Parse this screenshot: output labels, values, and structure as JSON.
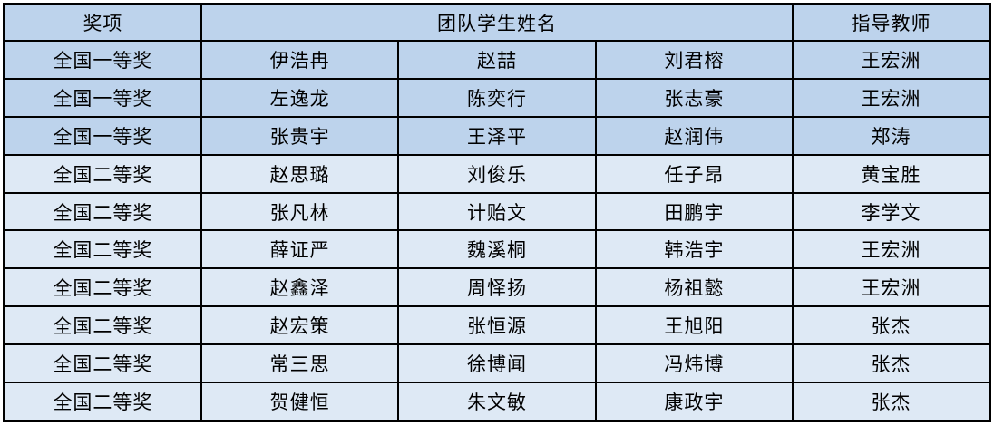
{
  "table": {
    "headers": {
      "award": "奖项",
      "team": "团队学生姓名",
      "advisor": "指导教师"
    },
    "rows": [
      {
        "award": "全国一等奖",
        "students": [
          "伊浩冉",
          "赵喆",
          "刘君榕"
        ],
        "advisor": "王宏洲",
        "shade": "dark"
      },
      {
        "award": "全国一等奖",
        "students": [
          "左逸龙",
          "陈奕行",
          "张志豪"
        ],
        "advisor": "王宏洲",
        "shade": "dark"
      },
      {
        "award": "全国一等奖",
        "students": [
          "张贵宇",
          "王泽平",
          "赵润伟"
        ],
        "advisor": "郑涛",
        "shade": "dark"
      },
      {
        "award": "全国二等奖",
        "students": [
          "赵思璐",
          "刘俊乐",
          "任子昂"
        ],
        "advisor": "黄宝胜",
        "shade": "light"
      },
      {
        "award": "全国二等奖",
        "students": [
          "张凡林",
          "计贻文",
          "田鹏宇"
        ],
        "advisor": "李学文",
        "shade": "light"
      },
      {
        "award": "全国二等奖",
        "students": [
          "薛证严",
          "魏溪桐",
          "韩浩宇"
        ],
        "advisor": "王宏洲",
        "shade": "light"
      },
      {
        "award": "全国二等奖",
        "students": [
          "赵鑫泽",
          "周怿扬",
          "杨祖懿"
        ],
        "advisor": "王宏洲",
        "shade": "light"
      },
      {
        "award": "全国二等奖",
        "students": [
          "赵宏策",
          "张恒源",
          "王旭阳"
        ],
        "advisor": "张杰",
        "shade": "light"
      },
      {
        "award": "全国二等奖",
        "students": [
          "常三思",
          "徐博闻",
          "冯炜博"
        ],
        "advisor": "张杰",
        "shade": "light"
      },
      {
        "award": "全国二等奖",
        "students": [
          "贺健恒",
          "朱文敏",
          "康政宇"
        ],
        "advisor": "张杰",
        "shade": "light"
      }
    ],
    "colors": {
      "row_dark": "#bdd3ec",
      "row_light": "#dee9f5",
      "border": "#000000"
    }
  }
}
